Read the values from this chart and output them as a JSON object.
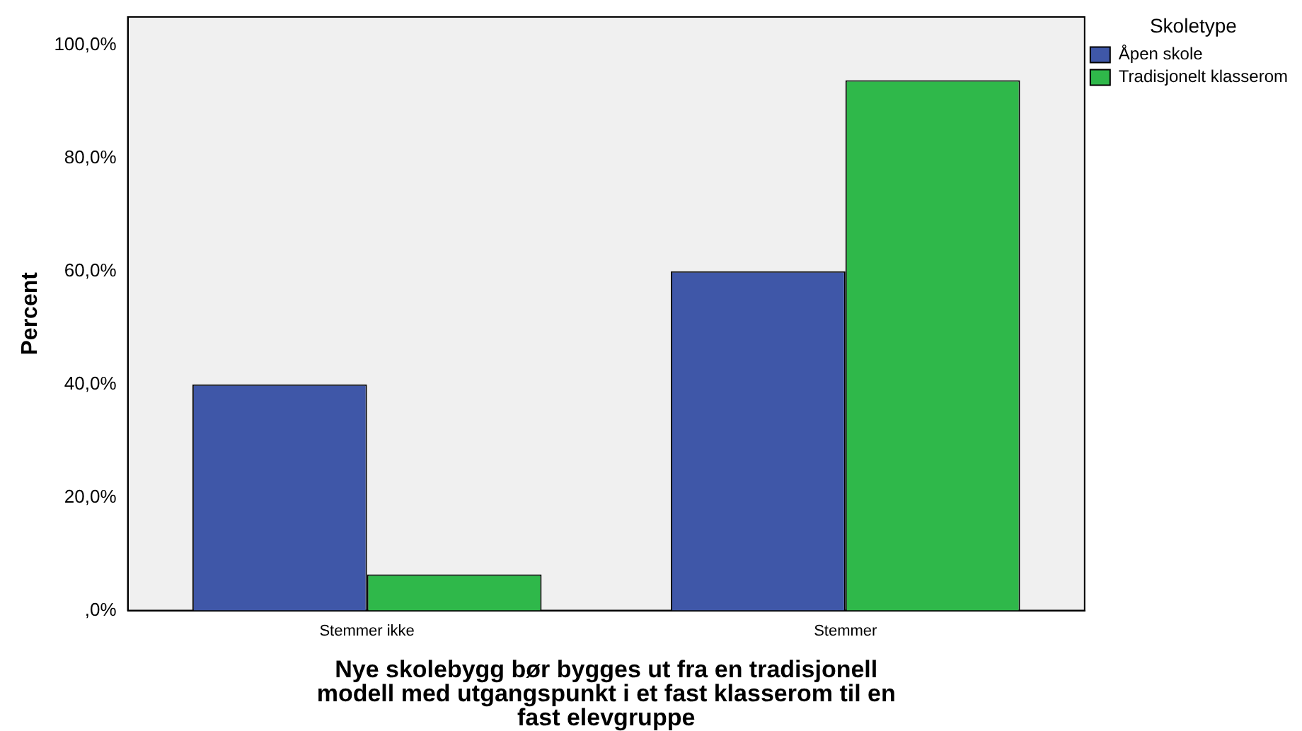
{
  "chart_data": {
    "type": "bar",
    "xlabel": "Nye skolebygg bør bygges ut fra en tradisjonell modell med utgangspunkt i et fast klasserom til en fast elevgruppe",
    "ylabel": "Percent",
    "legend_title": "Skoletype",
    "categories": [
      "Stemmer ikke",
      "Stemmer"
    ],
    "series": [
      {
        "name": "Åpen skole",
        "color": "#3f57a8",
        "values": [
          40,
          60
        ]
      },
      {
        "name": "Tradisjonelt klasserom",
        "color": "#2fb84a",
        "values": [
          6.4,
          93.8
        ]
      }
    ],
    "ylim": [
      0,
      105
    ],
    "yticks": [
      {
        "value": 0,
        "label": ",0%"
      },
      {
        "value": 20,
        "label": "20,0%"
      },
      {
        "value": 40,
        "label": "40,0%"
      },
      {
        "value": 60,
        "label": "60,0%"
      },
      {
        "value": 80,
        "label": "80,0%"
      },
      {
        "value": 100,
        "label": "100,0%"
      }
    ],
    "grid": false,
    "legend": "top right"
  }
}
